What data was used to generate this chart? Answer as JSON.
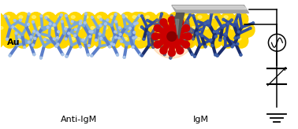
{
  "bg_color": "#ffffff",
  "au_color": "#FFD700",
  "au_shadow": "#B8860B",
  "au_highlight": "#FFF176",
  "antibody_light_color1": "#5B7EC9",
  "antibody_light_color2": "#7BA7D4",
  "antibody_light_color3": "#A8C4E8",
  "antibody_dark_color1": "#1A2D6B",
  "antibody_dark_color2": "#2E4A9E",
  "antibody_dark_color3": "#3D5FA8",
  "igm_color": "#CC0000",
  "igm_glow1": "#FF8C00",
  "igm_glow2": "#FFAA44",
  "probe_top_color": "#A0A0A0",
  "probe_top_highlight": "#D8D8D8",
  "probe_tip_color": "#555555",
  "probe_tip_highlight": "#888888",
  "text_anti_igm": "Anti-IgM",
  "text_igm": "IgM",
  "text_au": "Au"
}
